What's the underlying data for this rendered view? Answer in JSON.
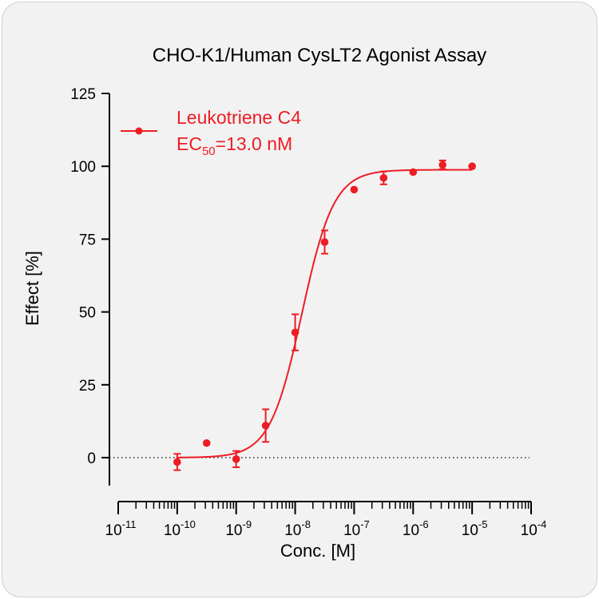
{
  "chart_data": {
    "type": "scatter",
    "title": "CHO-K1/Human CysLT2 Agonist Assay",
    "xlabel": "Conc. [M]",
    "ylabel": "Effect  [%]",
    "x_scale": "log",
    "xlim": [
      1e-11,
      0.0001
    ],
    "ylim": [
      -10,
      125
    ],
    "yticks": [
      0,
      25,
      50,
      75,
      100,
      125
    ],
    "xtick_labels": [
      {
        "base": "10",
        "exp": "-11"
      },
      {
        "base": "10",
        "exp": "-10"
      },
      {
        "base": "10",
        "exp": "-9"
      },
      {
        "base": "10",
        "exp": "-8"
      },
      {
        "base": "10",
        "exp": "-7"
      },
      {
        "base": "10",
        "exp": "-6"
      },
      {
        "base": "10",
        "exp": "-5"
      },
      {
        "base": "10",
        "exp": "-4"
      }
    ],
    "reference_line_y": 0,
    "legend_position": "top-left",
    "series": [
      {
        "name": "Leukotriene C4",
        "color": "#ee1c24",
        "ec50_label": {
          "prefix": "EC",
          "sub": "50",
          "suffix": "=13.0 nM"
        },
        "points": [
          {
            "x": 1e-10,
            "y": -1.5,
            "err": 2.8
          },
          {
            "x": 3.16e-10,
            "y": 5.0,
            "err": 0
          },
          {
            "x": 1e-09,
            "y": -0.5,
            "err": 2.8
          },
          {
            "x": 3.16e-09,
            "y": 11.0,
            "err": 5.6
          },
          {
            "x": 1e-08,
            "y": 43.0,
            "err": 6.2
          },
          {
            "x": 3.16e-08,
            "y": 74.0,
            "err": 4.0
          },
          {
            "x": 1e-07,
            "y": 92.0,
            "err": 0
          },
          {
            "x": 3.16e-07,
            "y": 96.0,
            "err": 2.2
          },
          {
            "x": 1e-06,
            "y": 98.0,
            "err": 0
          },
          {
            "x": 3.16e-06,
            "y": 100.5,
            "err": 1.5
          },
          {
            "x": 1e-05,
            "y": 100.0,
            "err": 0
          }
        ],
        "fit": {
          "bottom": 0,
          "top": 98.8,
          "ec50": 1.3e-08,
          "hill": 1.6
        }
      }
    ]
  }
}
